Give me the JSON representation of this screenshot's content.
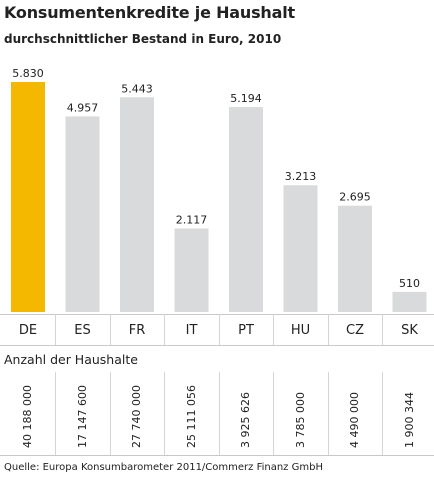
{
  "header": {
    "title": "Konsumentenkredite je Haushalt",
    "subtitle": "durchschnittlicher Bestand in Euro, 2010"
  },
  "households": {
    "label": "Anzahl der Haushalte",
    "values": [
      "40 188 000",
      "17 147 600",
      "27 740 000",
      "25 111 056",
      "3 925 626",
      "3 785 000",
      "4 490 000",
      "1 900 344"
    ]
  },
  "source": "Quelle: Europa Konsumbarometer 2011/Commerz Finanz GmbH",
  "colors": {
    "highlight": "#f5b800",
    "bar": "#d9dadb"
  },
  "chart_data": {
    "type": "bar",
    "title": "Konsumentenkredite je Haushalt",
    "subtitle": "durchschnittlicher Bestand in Euro, 2010",
    "categories": [
      "DE",
      "ES",
      "FR",
      "IT",
      "PT",
      "HU",
      "CZ",
      "SK"
    ],
    "values": [
      5830,
      4957,
      5443,
      2117,
      5194,
      3213,
      2695,
      510
    ],
    "value_labels": [
      "5.830",
      "4.957",
      "5.443",
      "2.117",
      "5.194",
      "3.213",
      "2.695",
      "510"
    ],
    "highlight_index": 0,
    "ylim": [
      0,
      5830
    ],
    "grid": false,
    "legend": "none"
  }
}
